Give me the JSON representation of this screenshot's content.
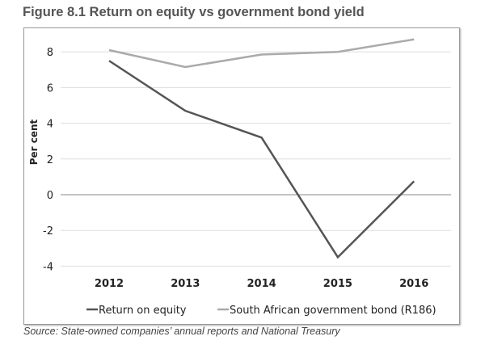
{
  "title": "Figure 8.1 Return on equity vs government bond yield",
  "source": "Source: State-owned companies’ annual reports and National Treasury",
  "chart_data": {
    "type": "line",
    "title": "Figure 8.1 Return on equity vs government bond yield",
    "xlabel": "",
    "ylabel": "Per cent",
    "categories": [
      "2012",
      "2013",
      "2014",
      "2015",
      "2016"
    ],
    "yticks": [
      -4,
      -2,
      0,
      2,
      4,
      6,
      8
    ],
    "ylim": [
      -4,
      9
    ],
    "grid": true,
    "legend": "bottom",
    "series": [
      {
        "name": "Return on equity",
        "values": [
          7.5,
          4.7,
          3.2,
          -3.5,
          0.75
        ],
        "color": "#555555"
      },
      {
        "name": "South African government bond (R186)",
        "values": [
          8.1,
          7.15,
          7.85,
          8.0,
          8.7
        ],
        "color": "#aaaaaa"
      }
    ]
  }
}
